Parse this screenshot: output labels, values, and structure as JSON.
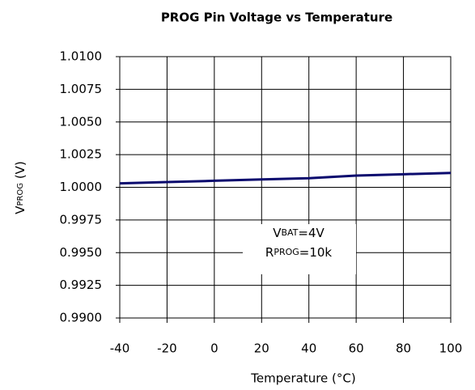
{
  "chart_data": {
    "type": "line",
    "title": "PROG Pin Voltage vs Temperature",
    "x_label": "Temperature (°C)",
    "y_label": {
      "main": "V",
      "sub": "PROG",
      "rest": " (V)"
    },
    "annotations": [
      {
        "main": "V",
        "sub": "BAT",
        "rest": "=4V"
      },
      {
        "main": "R",
        "sub": "PROG",
        "rest": "=10k"
      }
    ],
    "x": [
      -40,
      -20,
      0,
      20,
      40,
      60,
      80,
      100
    ],
    "series": [
      {
        "name": "VPROG",
        "color": "#0a0a6e",
        "values": [
          1.0003,
          1.0004,
          1.0005,
          1.0006,
          1.0007,
          1.0009,
          1.001,
          1.0011
        ]
      }
    ],
    "xlim": [
      -40,
      100
    ],
    "xticks": [
      -40,
      -20,
      0,
      20,
      40,
      60,
      80,
      100
    ],
    "ylim": [
      0.99,
      1.01
    ],
    "yticks": [
      {
        "value": 0.99,
        "label": "0.9900"
      },
      0.9925,
      {
        "value": 0.995,
        "label": "0.9950"
      },
      0.9975,
      {
        "value": 1.0,
        "label": "1.0000"
      },
      1.0025,
      {
        "value": 1.005,
        "label": "1.0050"
      },
      1.0075,
      {
        "value": 1.01,
        "label": "1.0100"
      }
    ],
    "grid": true
  }
}
